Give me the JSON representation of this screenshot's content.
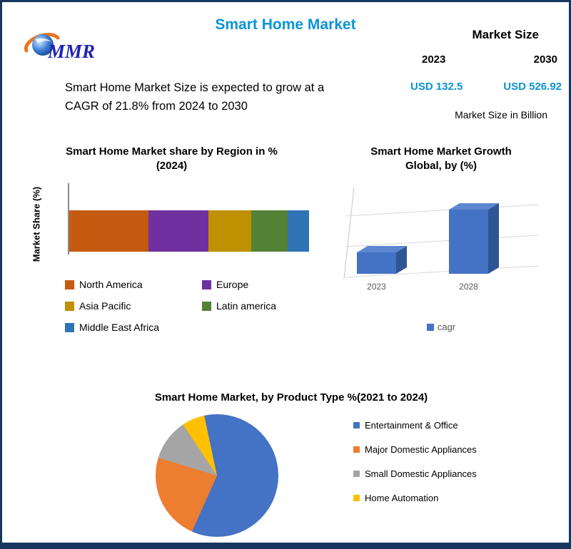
{
  "theme": {
    "accent_blue": "#0b93d5",
    "border_navy": "#17375e",
    "logo_blue": "#1f22b4",
    "logo_orange": "#e87722"
  },
  "page": {
    "title": "Smart Home Market",
    "logo_text": "MMR",
    "description_line1": "Smart Home Market Size is expected to grow at a",
    "description_line2": "CAGR of 21.8% from 2024 to 2030"
  },
  "market_size": {
    "header": "Market Size",
    "year1": "2023",
    "year2": "2030",
    "value1": "USD 132.5",
    "value2": "USD 526.92",
    "unit": "Market Size in Billion"
  },
  "chart_data": [
    {
      "type": "bar",
      "subtype": "horizontal-stacked",
      "title": "Smart Home Market share by Region in % (2024)",
      "xlabel": "",
      "ylabel": "Market Share (%)",
      "categories": [
        "North America",
        "Europe",
        "Asia Pacific",
        "Latin america",
        "Middle East Africa"
      ],
      "values": [
        33,
        25,
        18,
        15,
        9
      ],
      "colors": [
        "#c55a11",
        "#7030a0",
        "#bf9000",
        "#538135",
        "#2e74b5"
      ],
      "legend_position": "bottom",
      "grid": false
    },
    {
      "type": "bar",
      "subtype": "3d-column",
      "title": "Smart Home Market Growth Global, by (%)",
      "categories": [
        "2023",
        "2028"
      ],
      "series": [
        {
          "name": "cagr",
          "values": [
            8,
            24
          ]
        }
      ],
      "color": "#4472c4",
      "legend_position": "bottom",
      "grid": true
    },
    {
      "type": "pie",
      "title": "Smart Home Market, by Product Type %(2021 to 2024)",
      "labels": [
        "Entertainment & Office",
        "Major Domestic Appliances",
        "Small Domestic Appliances",
        "Home Automation"
      ],
      "values": [
        60,
        23,
        11,
        6
      ],
      "colors": [
        "#4472c4",
        "#ed7d31",
        "#a5a5a5",
        "#ffc000"
      ],
      "legend_position": "right"
    }
  ]
}
